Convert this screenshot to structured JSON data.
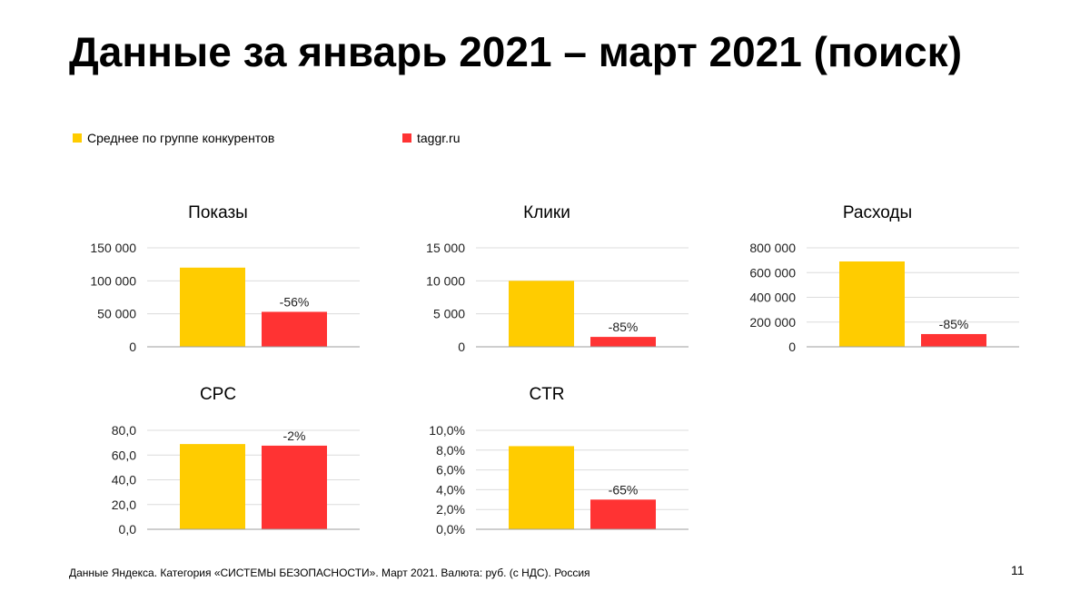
{
  "slide": {
    "title": "Данные за январь 2021 – март 2021 (поиск)",
    "footer": "Данные Яндекса. Категория «СИСТЕМЫ БЕЗОПАСНОСТИ». Март 2021. Валюта: руб. (с НДС). Россия",
    "page_number": "11"
  },
  "legend": [
    {
      "label": "Среднее по группе конкурентов",
      "color": "#FFCC00"
    },
    {
      "label": "taggr.ru",
      "color": "#FF3333"
    }
  ],
  "chart_data": [
    {
      "type": "bar",
      "title": "Показы",
      "categories": [
        "Среднее по группе конкурентов",
        "taggr.ru"
      ],
      "values": [
        120000,
        53000
      ],
      "colors": [
        "#FFCC00",
        "#FF3333"
      ],
      "data_labels": [
        "",
        "-56%"
      ],
      "ylim": [
        0,
        150000
      ],
      "yticks": [
        0,
        50000,
        100000,
        150000
      ],
      "ytick_labels": [
        "0",
        "50 000",
        "100 000",
        "150 000"
      ],
      "grid": true
    },
    {
      "type": "bar",
      "title": "Клики",
      "categories": [
        "Среднее по группе конкурентов",
        "taggr.ru"
      ],
      "values": [
        10000,
        1500
      ],
      "colors": [
        "#FFCC00",
        "#FF3333"
      ],
      "data_labels": [
        "",
        "-85%"
      ],
      "ylim": [
        0,
        15000
      ],
      "yticks": [
        0,
        5000,
        10000,
        15000
      ],
      "ytick_labels": [
        "0",
        "5 000",
        "10 000",
        "15 000"
      ],
      "grid": true
    },
    {
      "type": "bar",
      "title": "Расходы",
      "categories": [
        "Среднее по группе конкурентов",
        "taggr.ru"
      ],
      "values": [
        690000,
        103000
      ],
      "colors": [
        "#FFCC00",
        "#FF3333"
      ],
      "data_labels": [
        "",
        "-85%"
      ],
      "ylim": [
        0,
        800000
      ],
      "yticks": [
        0,
        200000,
        400000,
        600000,
        800000
      ],
      "ytick_labels": [
        "0",
        "200 000",
        "400 000",
        "600 000",
        "800 000"
      ],
      "grid": true
    },
    {
      "type": "bar",
      "title": "CPC",
      "categories": [
        "Среднее по группе конкурентов",
        "taggr.ru"
      ],
      "values": [
        68.9,
        67.6
      ],
      "colors": [
        "#FFCC00",
        "#FF3333"
      ],
      "data_labels": [
        "",
        "-2%"
      ],
      "ylim": [
        0,
        80
      ],
      "yticks": [
        0,
        20,
        40,
        60,
        80
      ],
      "ytick_labels": [
        "0,0",
        "20,0",
        "40,0",
        "60,0",
        "80,0"
      ],
      "grid": true
    },
    {
      "type": "bar",
      "title": "CTR",
      "categories": [
        "Среднее по группе конкурентов",
        "taggr.ru"
      ],
      "values": [
        8.4,
        3.0
      ],
      "colors": [
        "#FFCC00",
        "#FF3333"
      ],
      "data_labels": [
        "",
        "-65%"
      ],
      "ylim": [
        0,
        10
      ],
      "yticks": [
        0,
        2,
        4,
        6,
        8,
        10
      ],
      "ytick_labels": [
        "0,0%",
        "2,0%",
        "4,0%",
        "6,0%",
        "8,0%",
        "10,0%"
      ],
      "grid": true
    }
  ]
}
